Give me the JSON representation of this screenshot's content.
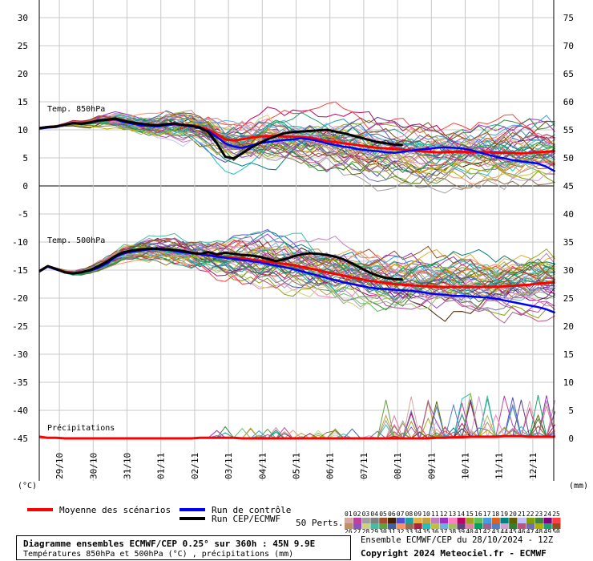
{
  "chart_data": {
    "type": "line",
    "left_axis_ticks": [
      "30",
      "25",
      "20",
      "15",
      "10",
      "5",
      "0",
      "-5",
      "-10",
      "-15",
      "-20",
      "-25",
      "-30",
      "-35",
      "-40",
      "-45"
    ],
    "left_axis_unit": "(°C)",
    "right_axis_ticks": [
      "75",
      "70",
      "65",
      "60",
      "55",
      "50",
      "45",
      "40",
      "35",
      "30",
      "25",
      "20",
      "15",
      "10",
      "5",
      "0"
    ],
    "right_axis_unit": "(mm)",
    "x_tick_labels": [
      "29/10",
      "30/10",
      "31/10",
      "01/11",
      "02/11",
      "03/11",
      "04/11",
      "05/11",
      "06/11",
      "07/11",
      "08/11",
      "09/11",
      "10/11",
      "11/11",
      "12/11"
    ],
    "panel_labels": {
      "t850": "Temp. 850hPa",
      "t500": "Temp. 500hPa",
      "precip": "Précipitations"
    },
    "x_hours_step": 6,
    "series": [
      {
        "name": "Moyenne des scénarios",
        "color": "#ff0000",
        "panel": "t850",
        "values": [
          10.3,
          10.5,
          10.6,
          10.9,
          11.2,
          11.1,
          11.3,
          11.6,
          11.7,
          11.9,
          11.5,
          11.2,
          11.0,
          10.8,
          10.7,
          10.9,
          11.0,
          10.9,
          10.8,
          10.5,
          10.0,
          9.2,
          8.3,
          8.1,
          8.3,
          8.6,
          8.8,
          8.9,
          8.9,
          8.8,
          8.8,
          8.7,
          8.6,
          8.3,
          8.0,
          7.8,
          7.6,
          7.4,
          7.2,
          7.0,
          6.8,
          6.7,
          6.6,
          6.5,
          6.3,
          6.2,
          6.1,
          6.0,
          6.0,
          6.1,
          6.1,
          6.0,
          6.0,
          6.0,
          5.9,
          5.9,
          5.9,
          5.8,
          5.9,
          6.0,
          6.1,
          6.2
        ]
      },
      {
        "name": "Run de contrôle",
        "color": "#0000ff",
        "panel": "t850",
        "values": [
          10.2,
          10.4,
          10.5,
          10.9,
          11.2,
          11.0,
          11.3,
          11.6,
          11.8,
          11.9,
          11.4,
          11.1,
          10.8,
          10.7,
          10.6,
          10.8,
          11.0,
          10.8,
          10.6,
          10.3,
          9.8,
          8.7,
          7.6,
          7.0,
          6.8,
          7.2,
          7.6,
          7.8,
          8.0,
          8.2,
          8.3,
          8.5,
          8.3,
          8.0,
          7.6,
          7.3,
          7.0,
          6.8,
          6.5,
          6.3,
          6.2,
          6.0,
          5.9,
          6.1,
          6.3,
          6.5,
          6.6,
          6.8,
          6.9,
          6.8,
          6.7,
          6.4,
          6.0,
          5.6,
          5.2,
          4.9,
          4.6,
          4.4,
          4.2,
          4.0,
          3.4,
          2.6
        ]
      },
      {
        "name": "Run CEP/ECMWF",
        "color": "#000000",
        "panel": "t850",
        "values": [
          10.3,
          10.5,
          10.6,
          10.9,
          11.2,
          11.1,
          11.3,
          11.7,
          11.8,
          12.0,
          11.6,
          11.3,
          11.1,
          10.9,
          10.8,
          11.0,
          11.1,
          10.9,
          10.7,
          10.4,
          9.6,
          7.6,
          5.2,
          4.9,
          5.8,
          6.8,
          7.6,
          8.3,
          8.9,
          9.4,
          9.6,
          9.7,
          9.8,
          9.9,
          10.0,
          9.7,
          9.4,
          9.0,
          8.6,
          8.2,
          7.8,
          7.6,
          7.4,
          7.3
        ]
      },
      {
        "name": "Moyenne des scénarios",
        "color": "#ff0000",
        "panel": "t500",
        "values": [
          -15.2,
          -14.3,
          -14.8,
          -15.3,
          -15.6,
          -15.4,
          -15.0,
          -14.4,
          -13.6,
          -12.6,
          -11.9,
          -11.6,
          -11.4,
          -11.3,
          -11.2,
          -11.3,
          -11.4,
          -11.6,
          -11.9,
          -12.1,
          -12.3,
          -12.5,
          -12.7,
          -12.8,
          -12.9,
          -13.1,
          -13.3,
          -13.5,
          -13.7,
          -13.9,
          -14.1,
          -14.4,
          -14.7,
          -15.0,
          -15.4,
          -15.7,
          -16.0,
          -16.3,
          -16.6,
          -16.9,
          -17.1,
          -17.3,
          -17.5,
          -17.6,
          -17.7,
          -17.8,
          -17.9,
          -18.0,
          -18.0,
          -18.0,
          -18.0,
          -18.0,
          -18.0,
          -18.0,
          -18.0,
          -17.9,
          -17.8,
          -17.7,
          -17.6,
          -17.4,
          -17.3,
          -17.2
        ]
      },
      {
        "name": "Run de contrôle",
        "color": "#0000ff",
        "panel": "t500",
        "values": [
          -15.3,
          -14.4,
          -14.9,
          -15.4,
          -15.6,
          -15.4,
          -15.1,
          -14.6,
          -13.8,
          -12.7,
          -12.0,
          -11.7,
          -11.5,
          -11.3,
          -11.3,
          -11.4,
          -11.6,
          -11.8,
          -12.0,
          -12.2,
          -12.4,
          -12.6,
          -12.8,
          -13.0,
          -13.2,
          -13.4,
          -13.6,
          -13.9,
          -14.2,
          -14.5,
          -14.8,
          -15.2,
          -15.6,
          -16.0,
          -16.4,
          -16.8,
          -17.2,
          -17.5,
          -17.8,
          -18.1,
          -18.3,
          -18.4,
          -18.5,
          -18.6,
          -18.7,
          -18.9,
          -19.1,
          -19.3,
          -19.4,
          -19.6,
          -19.6,
          -19.7,
          -19.8,
          -19.9,
          -20.1,
          -20.4,
          -20.7,
          -21.0,
          -21.3,
          -21.6,
          -22.0,
          -22.6
        ]
      },
      {
        "name": "Run CEP/ECMWF",
        "color": "#000000",
        "panel": "t500",
        "values": [
          -15.2,
          -14.3,
          -14.8,
          -15.4,
          -15.6,
          -15.4,
          -15.0,
          -14.3,
          -13.5,
          -12.5,
          -11.8,
          -11.5,
          -11.3,
          -11.2,
          -11.2,
          -11.3,
          -11.4,
          -11.6,
          -11.9,
          -12.1,
          -11.8,
          -12.2,
          -11.9,
          -12.1,
          -12.3,
          -12.4,
          -12.6,
          -13.0,
          -13.4,
          -13.1,
          -12.6,
          -12.2,
          -12.0,
          -12.1,
          -12.3,
          -12.6,
          -13.1,
          -13.8,
          -14.6,
          -15.4,
          -16.0,
          -16.4,
          -16.6,
          -16.7
        ]
      },
      {
        "name": "Moyenne des scénarios",
        "color": "#ff0000",
        "panel": "precip",
        "values": [
          0.3,
          0.1,
          0.1,
          0,
          0,
          0,
          0,
          0,
          0,
          0,
          0,
          0,
          0,
          0,
          0,
          0,
          0,
          0,
          0,
          0.1,
          0.1,
          0.1,
          0.1,
          0.1,
          0,
          0,
          0,
          0,
          0,
          0,
          0,
          0,
          0,
          0,
          0,
          0,
          0,
          0,
          0,
          0,
          0,
          0,
          0,
          0,
          0,
          0,
          0,
          0.1,
          0.1,
          0.2,
          0.2,
          0.3,
          0.3,
          0.3,
          0.3,
          0.4,
          0.4,
          0.4,
          0.3,
          0.3,
          0.3,
          0.3
        ]
      }
    ],
    "members_count": 50,
    "member_colors": [
      "#d4a8a0",
      "#c040a0",
      "#a0a0a0",
      "#808080",
      "#a05030",
      "#402000",
      "#5050d0",
      "#20a0a0",
      "#e0b040",
      "#c0a040",
      "#c080c0",
      "#a030c0",
      "#ff80c0",
      "#c00060",
      "#a0a020",
      "#60c060",
      "#40a0e0",
      "#e06020",
      "#008080",
      "#606000",
      "#c0c0ff",
      "#80a000",
      "#408040",
      "#800080",
      "#ff4040",
      "#c09060",
      "#9050c0",
      "#d0d080",
      "#40c0a0",
      "#60a040",
      "#4060a0",
      "#ff9060",
      "#907050",
      "#b02040",
      "#20c0c0",
      "#c0c040",
      "#70b0e0",
      "#a0c060",
      "#604080",
      "#e080a0",
      "#00a060",
      "#a06090",
      "#5080c0",
      "#d0a0d0",
      "#308030",
      "#c05080",
      "#7070b0",
      "#b0b000",
      "#20a070",
      "#905020"
    ]
  },
  "legend": {
    "mean_label": "Moyenne des scénarios",
    "control_label": "Run de contrôle",
    "oper_label": "Run CEP/ECMWF",
    "perts_label": "50 Perts.",
    "perts_top": [
      "01",
      "02",
      "03",
      "04",
      "05",
      "06",
      "07",
      "08",
      "09",
      "10",
      "11",
      "12",
      "13",
      "14",
      "15",
      "16",
      "17",
      "18",
      "19",
      "20",
      "21",
      "22",
      "23",
      "24",
      "25"
    ],
    "perts_bottom": [
      "26",
      "27",
      "28",
      "29",
      "30",
      "31",
      "32",
      "33",
      "34",
      "35",
      "36",
      "37",
      "38",
      "39",
      "40",
      "41",
      "42",
      "43",
      "44",
      "45",
      "46",
      "47",
      "48",
      "49",
      "50"
    ]
  },
  "footer": {
    "title": "Diagramme ensembles ECMWF/CEP 0.25° sur 360h : 45N 9.9E",
    "subtitle": "Températures 850hPa et 500hPa (°C) , précipitations (mm)",
    "source": "Ensemble ECMWF/CEP du 28/10/2024 - 12Z",
    "copyright": "Copyright 2024 Meteociel.fr - ECMWF"
  }
}
